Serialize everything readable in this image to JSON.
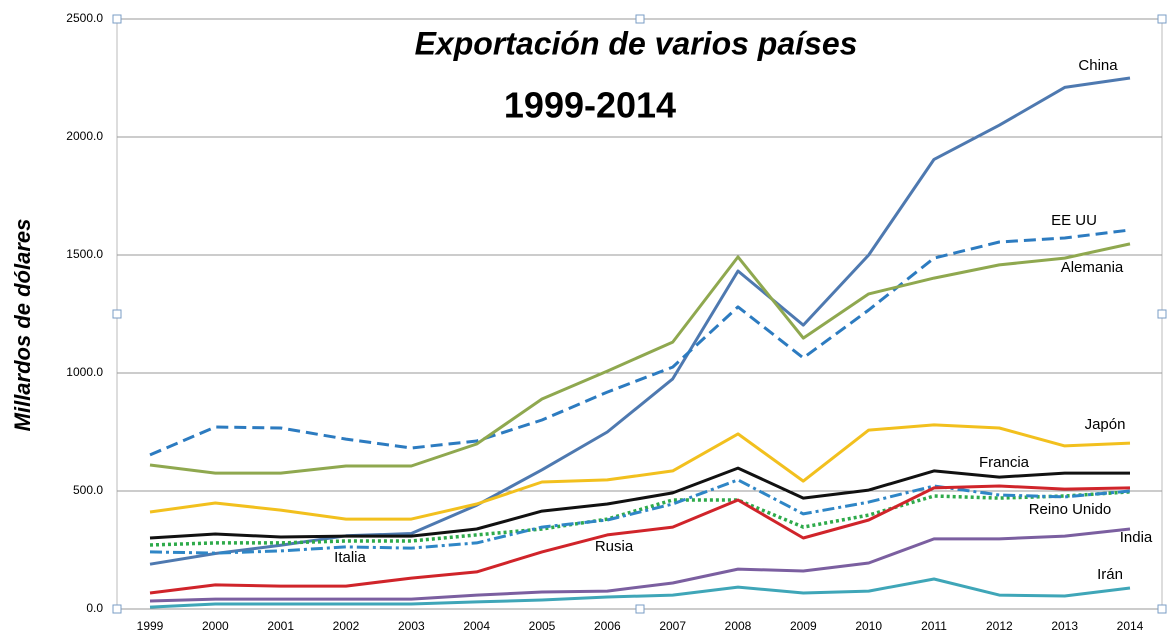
{
  "chart_data": {
    "type": "line",
    "title": "Exportación de varios países",
    "subtitle": "1999-2014",
    "y_label": "Millardos de dólares",
    "categories": [
      "1999",
      "2000",
      "2001",
      "2002",
      "2003",
      "2004",
      "2005",
      "2006",
      "2007",
      "2008",
      "2009",
      "2010",
      "2011",
      "2012",
      "2013",
      "2014"
    ],
    "ylim": [
      0,
      2500
    ],
    "yticks": [
      {
        "value": 0,
        "label": "0.0"
      },
      {
        "value": 500,
        "label": "500.0"
      },
      {
        "value": 1000,
        "label": "1000.0"
      },
      {
        "value": 1500,
        "label": "1500.0"
      },
      {
        "value": 2000,
        "label": "2000.0"
      },
      {
        "value": 2500,
        "label": "2500.0"
      }
    ],
    "grid": true,
    "series": [
      {
        "name": "China",
        "color": "#4e79b0",
        "style": "solid",
        "values": [
          190,
          235,
          270,
          310,
          320,
          440,
          590,
          750,
          975,
          1432,
          1203,
          1500,
          1905,
          2050,
          2210,
          2250
        ]
      },
      {
        "name": "EE UU",
        "color": "#2c7bc0",
        "style": "dashed",
        "values": [
          653,
          771,
          767,
          720,
          682,
          712,
          801,
          919,
          1025,
          1280,
          1064,
          1267,
          1487,
          1555,
          1572,
          1606
        ]
      },
      {
        "name": "Alemania",
        "color": "#8fa84f",
        "style": "solid",
        "values": [
          610,
          576,
          576,
          606,
          606,
          699,
          890,
          1008,
          1131,
          1492,
          1148,
          1335,
          1402,
          1458,
          1487,
          1547
        ]
      },
      {
        "name": "Japón",
        "color": "#f2c01e",
        "style": "solid",
        "values": [
          411,
          449,
          419,
          381,
          381,
          445,
          538,
          547,
          585,
          742,
          542,
          758,
          780,
          767,
          691,
          703
        ]
      },
      {
        "name": "Francia",
        "color": "#111111",
        "style": "solid",
        "values": [
          301,
          318,
          305,
          309,
          309,
          339,
          415,
          445,
          492,
          597,
          470,
          504,
          585,
          559,
          576,
          576
        ]
      },
      {
        "name": "Reino Unido",
        "color": "#2eaa4a",
        "style": "dotted",
        "values": [
          271,
          280,
          280,
          288,
          288,
          314,
          339,
          381,
          462,
          462,
          347,
          398,
          479,
          470,
          479,
          496
        ]
      },
      {
        "name": "Italia",
        "color": "#2f86c6",
        "style": "dashdot",
        "values": [
          242,
          237,
          246,
          263,
          258,
          280,
          347,
          377,
          445,
          547,
          403,
          453,
          521,
          483,
          475,
          500
        ]
      },
      {
        "name": "Rusia",
        "color": "#d0242a",
        "style": "solid",
        "values": [
          68,
          102,
          97,
          97,
          131,
          157,
          242,
          314,
          347,
          462,
          301,
          377,
          513,
          521,
          508,
          513
        ]
      },
      {
        "name": "India",
        "color": "#7b5fa0",
        "style": "solid",
        "values": [
          34,
          42,
          42,
          42,
          42,
          59,
          72,
          76,
          110,
          169,
          161,
          195,
          297,
          297,
          309,
          339
        ]
      },
      {
        "name": "Irán",
        "color": "#3fa6b8",
        "style": "solid",
        "values": [
          8,
          21,
          21,
          21,
          21,
          30,
          38,
          51,
          59,
          93,
          68,
          76,
          127,
          59,
          55,
          89
        ]
      }
    ]
  }
}
